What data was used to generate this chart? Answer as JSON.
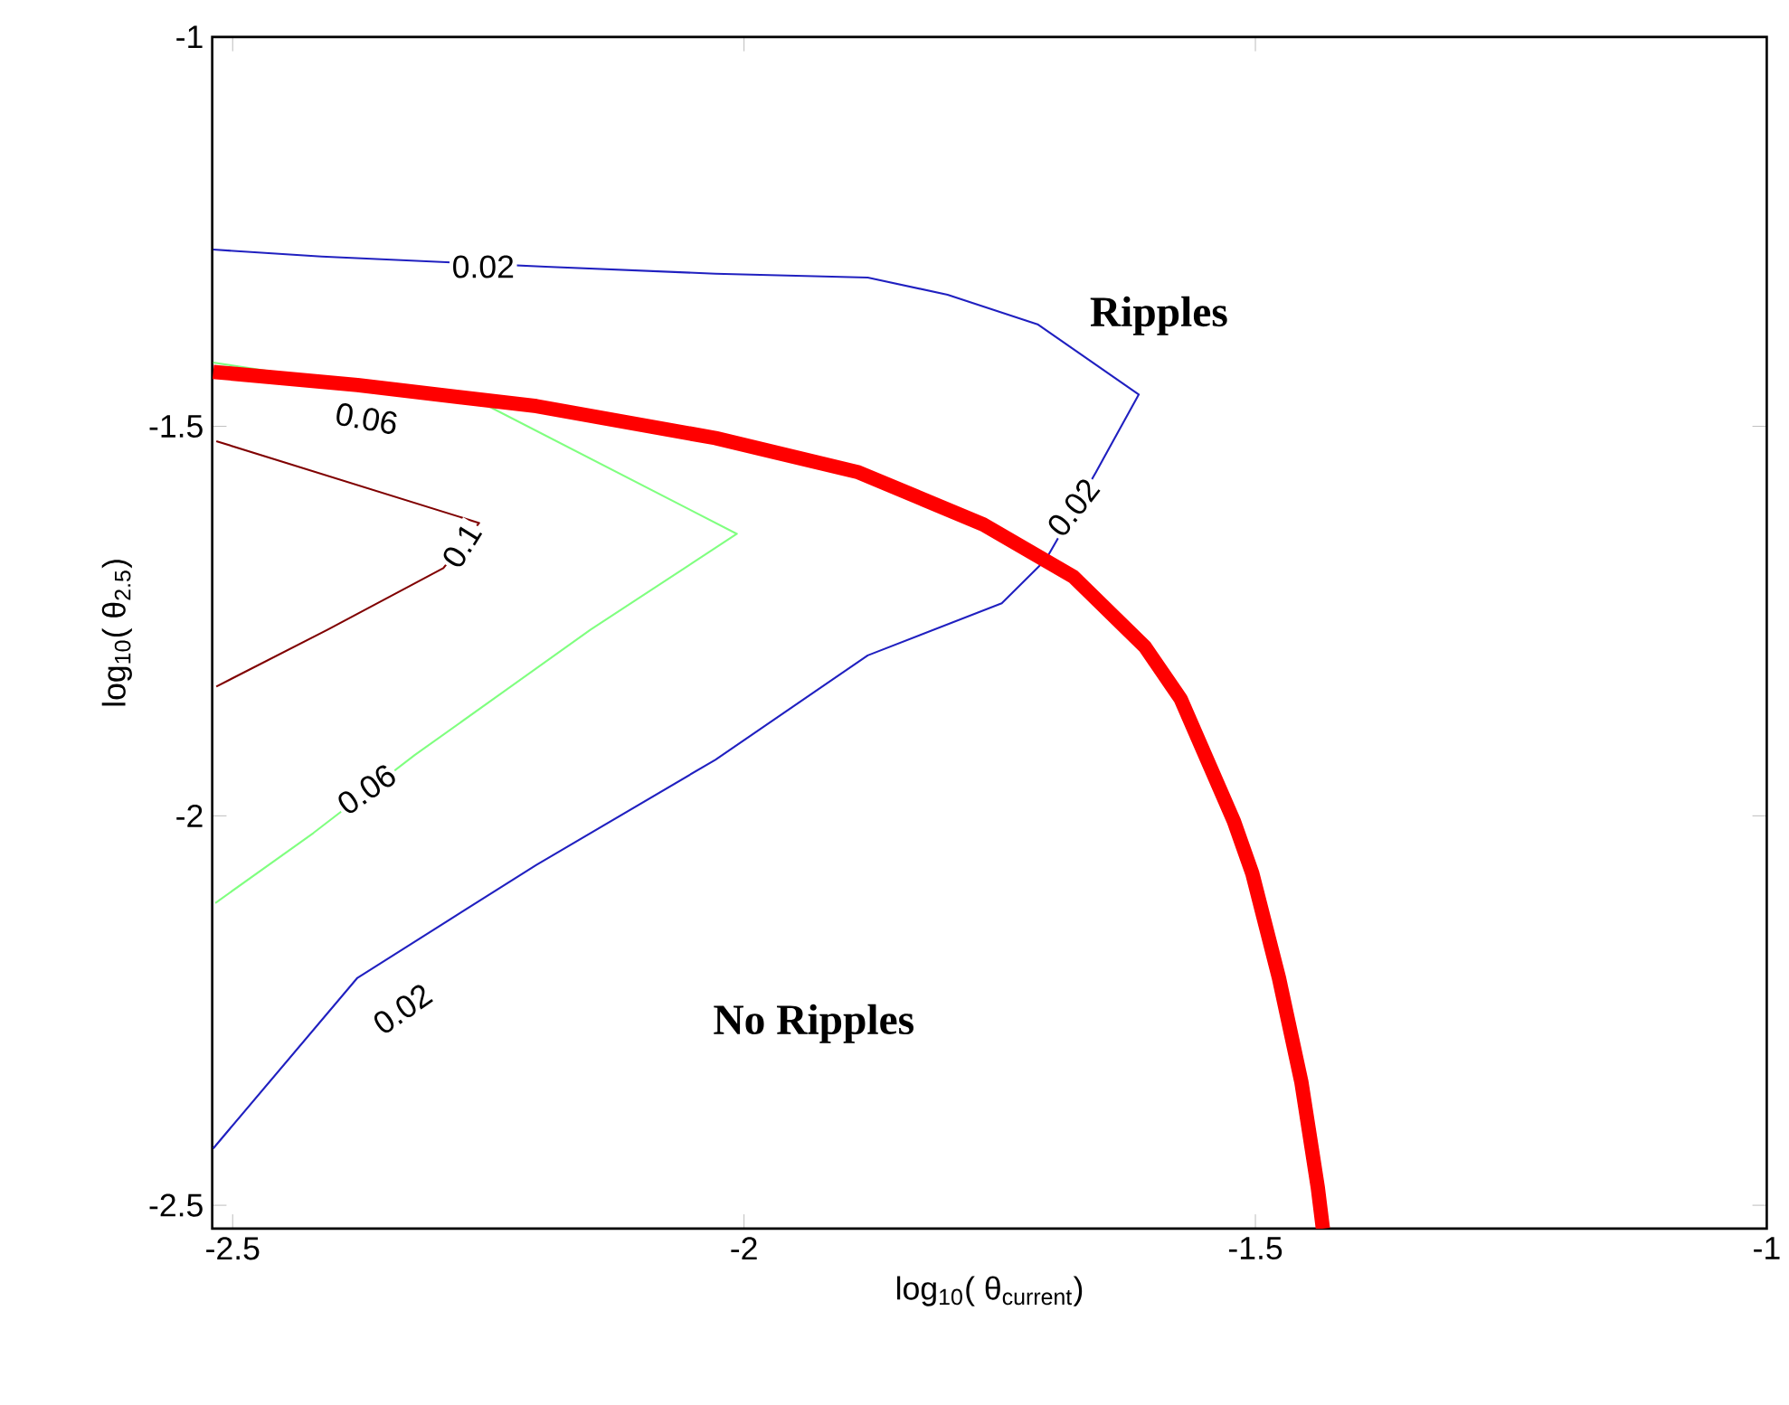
{
  "chart_data": {
    "type": "line",
    "xlabel": "log$_{10}$( θ$_{current}$)",
    "ylabel": "log$_{10}$( θ$_{2.5}$)",
    "xlim": [
      -2.52,
      -1
    ],
    "ylim": [
      -2.53,
      -1
    ],
    "xticks": [
      -2.5,
      -2,
      -1.5,
      -1
    ],
    "yticks": [
      -2.5,
      -2,
      -1.5,
      -1
    ],
    "series": [
      {
        "color": "#2020c0",
        "x": [
          -2.519,
          -2.413,
          -2.194,
          -2.028,
          -1.879,
          -1.801,
          -1.713,
          -1.614,
          -1.656,
          -1.705,
          -1.748,
          -1.879,
          -2.028,
          -2.203,
          -2.378,
          -2.519
        ],
        "values": [
          -1.273,
          -1.282,
          -1.295,
          -1.304,
          -1.309,
          -1.331,
          -1.369,
          -1.459,
          -1.559,
          -1.671,
          -1.727,
          -1.794,
          -1.928,
          -2.063,
          -2.208,
          -2.427
        ]
      },
      {
        "color": "#80ff80",
        "x": [
          -2.519,
          -2.253,
          -2.007,
          -2.15,
          -2.322,
          -2.421,
          -2.517
        ],
        "values": [
          -1.418,
          -1.472,
          -1.638,
          -1.761,
          -1.922,
          -2.022,
          -2.112
        ]
      },
      {
        "color": "#800000",
        "x": [
          -2.516,
          -2.259,
          -2.294,
          -2.407,
          -2.516
        ],
        "values": [
          -1.519,
          -1.624,
          -1.682,
          -1.761,
          -1.834
        ]
      },
      {
        "color": "#ff0000",
        "x": [
          -2.519,
          -2.378,
          -2.203,
          -2.028,
          -1.888,
          -1.766,
          -1.678,
          -1.608,
          -1.573,
          -1.521,
          -1.503,
          -1.477,
          -1.455,
          -1.439,
          -1.434
        ],
        "values": [
          -1.43,
          -1.447,
          -1.474,
          -1.515,
          -1.559,
          -1.626,
          -1.693,
          -1.783,
          -1.85,
          -2.007,
          -2.074,
          -2.208,
          -2.342,
          -2.477,
          -2.53
        ]
      }
    ],
    "line_style": "solid",
    "marker": "none",
    "annotations": [
      {
        "text": "0.02",
        "x": -2.255,
        "y": -1.295
      },
      {
        "text": "0.06",
        "x": -2.369,
        "y": -1.49
      },
      {
        "text": "0.02",
        "x": -1.678,
        "y": -1.604
      },
      {
        "text": "0.1",
        "x": -2.276,
        "y": -1.653
      },
      {
        "text": "0.06",
        "x": -2.369,
        "y": -1.966
      },
      {
        "text": "0.02",
        "x": -2.334,
        "y": -2.248
      },
      "Ripples",
      "No Ripples"
    ]
  }
}
